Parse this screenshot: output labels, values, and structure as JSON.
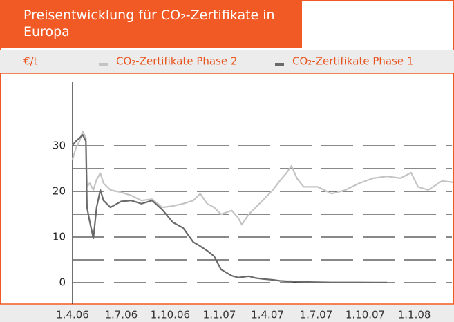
{
  "chart_data": {
    "type": "line",
    "title": "Preisentwicklung für CO₂-Zertifikate in Europa",
    "ylabel": "€/t",
    "x": [
      "2006-04-01",
      "2006-04-07",
      "2006-04-14",
      "2006-04-20",
      "2006-04-26",
      "2006-04-28",
      "2006-05-03",
      "2006-05-10",
      "2006-05-16",
      "2006-05-23",
      "2006-05-29",
      "2006-06-11",
      "2006-07-01",
      "2006-07-20",
      "2006-08-08",
      "2006-08-28",
      "2006-09-16",
      "2006-10-06",
      "2006-10-25",
      "2006-11-13",
      "2006-11-26",
      "2006-12-09",
      "2006-12-22",
      "2007-01-04",
      "2007-01-24",
      "2007-02-05",
      "2007-02-12",
      "2007-02-25",
      "2007-03-10",
      "2007-03-23",
      "2007-04-11",
      "2007-04-24",
      "2007-05-07",
      "2007-05-16",
      "2007-05-26",
      "2007-06-08",
      "2007-07-04",
      "2007-07-30",
      "2007-08-25",
      "2007-09-20",
      "2007-10-16",
      "2007-11-11",
      "2007-12-06",
      "2007-12-26",
      "2008-01-08",
      "2008-01-27",
      "2008-02-22",
      "2008-03-13"
    ],
    "series": [
      {
        "name": "CO₂-Zertifikate Phase 2",
        "color": "#c4c4c4",
        "values": [
          27,
          29.4,
          31,
          33.2,
          31.7,
          21,
          21.8,
          20.3,
          22.6,
          24,
          21.8,
          20.3,
          19.8,
          19.1,
          18,
          18.3,
          16.5,
          16.8,
          17.3,
          18,
          19.5,
          17.3,
          16.5,
          15,
          15.8,
          14.2,
          12.7,
          15,
          16.5,
          18,
          20.3,
          22.3,
          24.1,
          25.6,
          22.9,
          21,
          21,
          19.5,
          20.3,
          21.8,
          22.9,
          23.3,
          22.9,
          24.1,
          21,
          20.3,
          22.3,
          22
        ]
      },
      {
        "name": "CO₂-Zertifikate Phase 1",
        "color": "#6a6a6a",
        "values": [
          30.1,
          31,
          31.7,
          32.4,
          31,
          16.5,
          13.5,
          9.7,
          16.5,
          20.3,
          18,
          16.5,
          17.8,
          18,
          17.3,
          18,
          16,
          13.2,
          12,
          8.9,
          8,
          7,
          5.8,
          2.9,
          1.5,
          1.1,
          1.2,
          1.4,
          1,
          0.8,
          0.6,
          0.4,
          0.3,
          0.3,
          0.2,
          0.15,
          0.1,
          0.05,
          0.05,
          0.04,
          0.03,
          0.03,
          null,
          null,
          null,
          null,
          null,
          null
        ]
      }
    ],
    "xlim": [
      "2006-04-01",
      "2008-03-14"
    ],
    "xticks": [
      {
        "value": "2006-04-01",
        "label": "1.4.06"
      },
      {
        "value": "2006-07-01",
        "label": "1.7.06"
      },
      {
        "value": "2006-10-01",
        "label": "1.10.06"
      },
      {
        "value": "2007-01-01",
        "label": "1.1.07"
      },
      {
        "value": "2007-04-01",
        "label": "1.4.07"
      },
      {
        "value": "2007-07-01",
        "label": "1.7.07"
      },
      {
        "value": "2007-10-01",
        "label": "1.10.07"
      },
      {
        "value": "2008-01-01",
        "label": "1.1.08"
      }
    ],
    "ylim": [
      -5,
      44
    ],
    "yticks": [
      0,
      10,
      20,
      30
    ],
    "ygrid": [
      0,
      5,
      10,
      15,
      20,
      25,
      30
    ]
  }
}
